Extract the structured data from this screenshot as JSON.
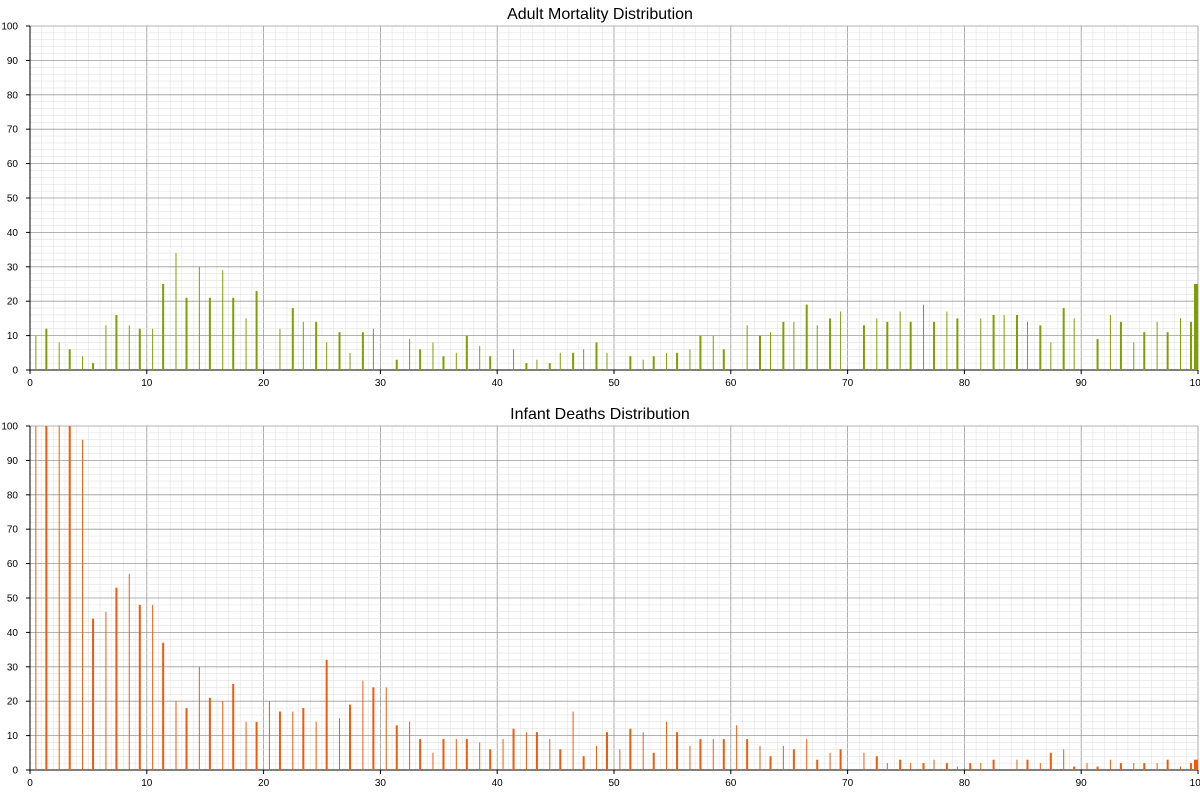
{
  "chart_data": [
    {
      "type": "bar",
      "title": "Adult Mortality Distribution",
      "color": "#7f9f00",
      "xlim": [
        0,
        100
      ],
      "ylim": [
        0,
        100
      ],
      "x_ticks": [
        0,
        10,
        20,
        30,
        40,
        50,
        60,
        70,
        80,
        90,
        100
      ],
      "y_ticks": [
        0,
        10,
        20,
        30,
        40,
        50,
        60,
        70,
        80,
        90,
        100
      ],
      "grid": true,
      "x": [
        0.5,
        1.4,
        2.5,
        3.4,
        4.5,
        5.4,
        6.5,
        7.4,
        8.5,
        9.4,
        10.5,
        11.4,
        12.5,
        13.4,
        14.5,
        15.4,
        16.5,
        17.4,
        18.5,
        19.4,
        21.4,
        22.5,
        23.4,
        24.5,
        25.4,
        26.5,
        27.4,
        28.5,
        29.4,
        31.4,
        32.5,
        33.4,
        34.5,
        35.4,
        36.5,
        37.4,
        38.5,
        39.4,
        41.4,
        42.5,
        43.4,
        44.5,
        45.4,
        46.5,
        47.4,
        48.5,
        49.4,
        51.4,
        52.5,
        53.4,
        54.5,
        55.4,
        56.5,
        57.4,
        58.5,
        59.4,
        61.4,
        62.5,
        63.4,
        64.5,
        65.4,
        66.5,
        67.4,
        68.5,
        69.4,
        71.4,
        72.5,
        73.4,
        74.5,
        75.4,
        76.5,
        77.4,
        78.5,
        79.4,
        81.4,
        82.5,
        83.4,
        84.5,
        85.4,
        86.5,
        87.4,
        88.5,
        89.4,
        91.4,
        92.5,
        93.4,
        94.5,
        95.4,
        96.5,
        97.4,
        98.5,
        99.4,
        99.9
      ],
      "values": [
        10,
        12,
        8,
        6,
        4,
        2,
        13,
        16,
        13,
        12,
        12,
        25,
        34,
        21,
        30,
        21,
        29,
        21,
        15,
        23,
        12,
        18,
        14,
        14,
        8,
        11,
        5,
        11,
        12,
        3,
        9,
        6,
        8,
        4,
        5,
        10,
        7,
        4,
        6,
        2,
        3,
        2,
        5,
        5,
        6,
        8,
        5,
        4,
        3,
        4,
        5,
        5,
        6,
        10,
        10,
        6,
        13,
        10,
        11,
        14,
        14,
        19,
        13,
        15,
        17,
        13,
        15,
        14,
        17,
        14,
        19,
        14,
        17,
        15,
        15,
        16,
        16,
        16,
        14,
        13,
        8,
        18,
        15,
        9,
        16,
        14,
        8,
        11,
        14,
        11,
        15,
        14,
        25
      ]
    },
    {
      "type": "bar",
      "title": "Infant Deaths Distribution",
      "color": "#f05a0a",
      "xlim": [
        0,
        100
      ],
      "ylim": [
        0,
        100
      ],
      "x_ticks": [
        0,
        10,
        20,
        30,
        40,
        50,
        60,
        70,
        80,
        90,
        100
      ],
      "y_ticks": [
        0,
        10,
        20,
        30,
        40,
        50,
        60,
        70,
        80,
        90,
        100
      ],
      "grid": true,
      "x": [
        0.5,
        1.4,
        2.5,
        3.4,
        4.5,
        5.4,
        6.5,
        7.4,
        8.5,
        9.4,
        10.5,
        11.4,
        12.5,
        13.4,
        14.5,
        15.4,
        16.5,
        17.4,
        18.5,
        19.4,
        20.5,
        21.4,
        22.5,
        23.4,
        24.5,
        25.4,
        26.5,
        27.4,
        28.5,
        29.4,
        30.5,
        31.4,
        32.5,
        33.4,
        34.5,
        35.4,
        36.5,
        37.4,
        38.5,
        39.4,
        40.5,
        41.4,
        42.5,
        43.4,
        44.5,
        45.4,
        46.5,
        47.4,
        48.5,
        49.4,
        50.5,
        51.4,
        52.5,
        53.4,
        54.5,
        55.4,
        56.5,
        57.4,
        58.5,
        59.4,
        60.5,
        61.4,
        62.5,
        63.4,
        64.5,
        65.4,
        66.5,
        67.4,
        68.5,
        69.4,
        71.4,
        72.5,
        73.4,
        74.5,
        75.4,
        76.5,
        77.4,
        78.5,
        79.4,
        80.5,
        81.4,
        82.5,
        84.5,
        85.4,
        86.5,
        87.4,
        88.5,
        89.4,
        90.5,
        91.4,
        92.5,
        93.4,
        94.5,
        95.4,
        96.5,
        97.4,
        98.5,
        99.4,
        99.9
      ],
      "values": [
        100,
        100,
        100,
        100,
        96,
        44,
        46,
        53,
        57,
        48,
        48,
        37,
        20,
        18,
        30,
        21,
        20,
        25,
        14,
        14,
        20,
        17,
        17,
        18,
        14,
        32,
        15,
        19,
        26,
        24,
        24,
        13,
        14,
        9,
        5,
        9,
        9,
        9,
        8,
        6,
        9,
        12,
        11,
        11,
        9,
        6,
        17,
        4,
        7,
        11,
        6,
        12,
        11,
        5,
        14,
        11,
        7,
        9,
        9,
        9,
        13,
        9,
        7,
        4,
        7,
        6,
        9,
        3,
        5,
        6,
        5,
        4,
        2,
        3,
        2,
        2,
        3,
        2,
        1,
        2,
        2,
        3,
        3,
        3,
        2,
        5,
        6,
        1,
        2,
        1,
        3,
        2,
        2,
        2,
        2,
        3,
        1,
        2,
        3
      ]
    }
  ]
}
